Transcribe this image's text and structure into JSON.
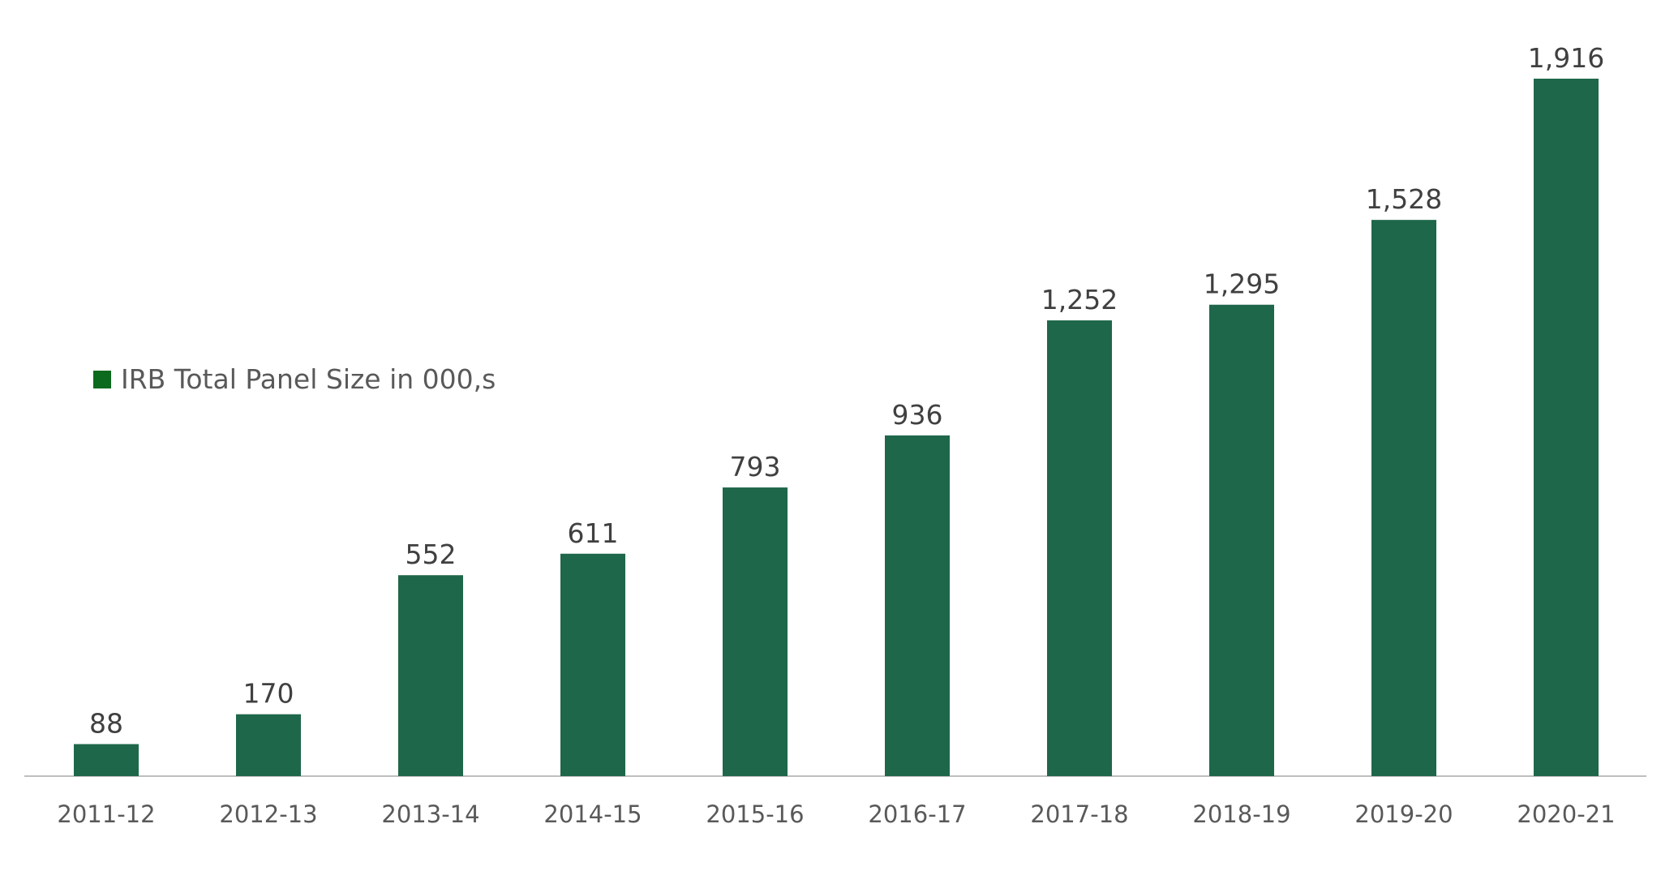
{
  "chart_data": {
    "type": "bar",
    "categories": [
      "2011-12",
      "2012-13",
      "2013-14",
      "2014-15",
      "2015-16",
      "2016-17",
      "2017-18",
      "2018-19",
      "2019-20",
      "2020-21"
    ],
    "series": [
      {
        "name": "IRB Total Panel Size in 000,s",
        "values": [
          88,
          170,
          552,
          611,
          793,
          936,
          1252,
          1295,
          1528,
          1916
        ],
        "labels": [
          "88",
          "170",
          "552",
          "611",
          "793",
          "936",
          "1,252",
          "1,295",
          "1,528",
          "1,916"
        ]
      }
    ],
    "ylim": [
      0,
      1916
    ],
    "grid": false,
    "legend_position": "left-middle",
    "colors": {
      "bar": "#1e674a",
      "legend_swatch": "#0b6a1e",
      "axis": "#bfbfbf",
      "text": "#404040",
      "axis_text": "#595959"
    }
  }
}
